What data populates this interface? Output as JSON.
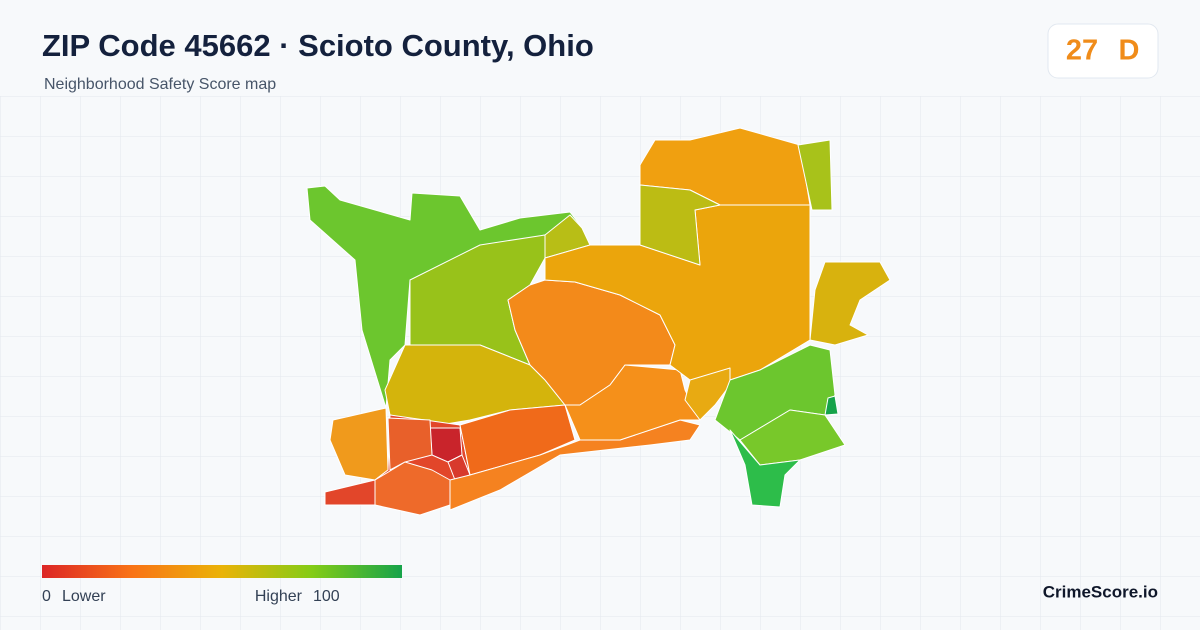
{
  "header": {
    "title": "ZIP Code 45662 · Scioto County, Ohio",
    "subtitle": "Neighborhood Safety Score map"
  },
  "score": {
    "value": "27",
    "grade": "D"
  },
  "legend": {
    "min": "0",
    "min_label": "Lower",
    "max_label": "Higher",
    "max": "100"
  },
  "brand": "CrimeScore.io"
}
